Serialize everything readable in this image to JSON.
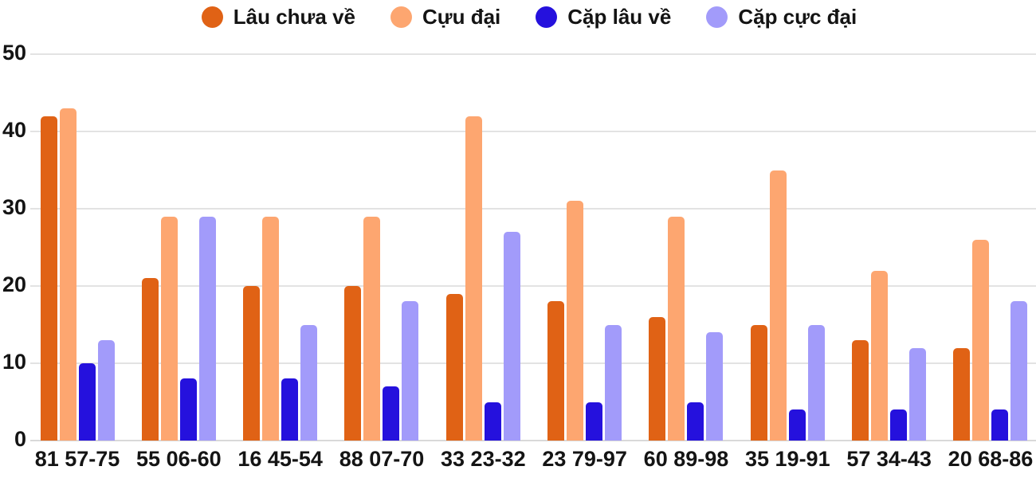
{
  "chart_data": {
    "type": "bar",
    "categories": [
      "81 57-75",
      "55 06-60",
      "16 45-54",
      "88 07-70",
      "33 23-32",
      "23 79-97",
      "60 89-98",
      "35 19-91",
      "57 34-43",
      "20 68-86"
    ],
    "series": [
      {
        "name": "Lâu chưa về",
        "color": "#E06215",
        "values": [
          42,
          21,
          20,
          20,
          19,
          18,
          16,
          15,
          13,
          12
        ]
      },
      {
        "name": "Cựu đại",
        "color": "#FDA670",
        "values": [
          43,
          29,
          29,
          29,
          42,
          31,
          29,
          35,
          22,
          26
        ]
      },
      {
        "name": "Cặp lâu về",
        "color": "#2511DD",
        "values": [
          10,
          8,
          8,
          7,
          5,
          5,
          5,
          4,
          4,
          4
        ]
      },
      {
        "name": "Cặp cực đại",
        "color": "#A29BFA",
        "values": [
          13,
          29,
          15,
          18,
          27,
          15,
          14,
          15,
          12,
          18
        ]
      }
    ],
    "ylim": [
      0,
      50
    ],
    "yticks": [
      0,
      10,
      20,
      30,
      40,
      50
    ],
    "grid": true,
    "legend_position": "top"
  },
  "style": {
    "text_color": "#141414",
    "grid_color": "#e3e3e3",
    "baseline_color": "#d9d9d9",
    "background": "#ffffff"
  }
}
